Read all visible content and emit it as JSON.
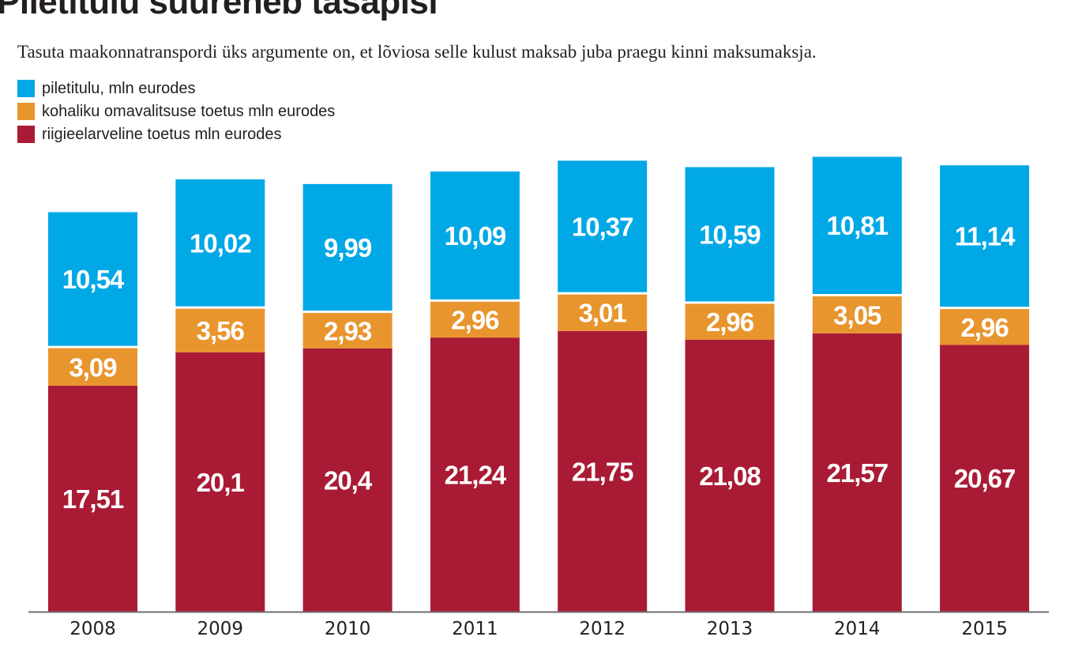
{
  "chart_data": {
    "type": "bar",
    "stacked": true,
    "title": "Piletitulu suureneb tasapisi",
    "subtitle": "Tasuta maakonnatranspordi üks argumente on, et lõviosa selle kulust maksab juba praegu kinni maksumaksja.",
    "categories": [
      "2008",
      "2009",
      "2010",
      "2011",
      "2012",
      "2013",
      "2014",
      "2015"
    ],
    "series": [
      {
        "name": "riigieelarveline toetus mln eurodes",
        "color": "#a91b35",
        "values": [
          17.51,
          20.1,
          20.4,
          21.24,
          21.75,
          21.08,
          21.57,
          20.67
        ],
        "labels": [
          "17,51",
          "20,1",
          "20,4",
          "21,24",
          "21,75",
          "21,08",
          "21,57",
          "20,67"
        ]
      },
      {
        "name": "kohaliku omavalitsuse toetus mln eurodes",
        "color": "#e8952e",
        "values": [
          3.09,
          3.56,
          2.93,
          2.96,
          3.01,
          2.96,
          3.05,
          2.96
        ],
        "labels": [
          "3,09",
          "3,56",
          "2,93",
          "2,96",
          "3,01",
          "2,96",
          "3,05",
          "2,96"
        ]
      },
      {
        "name": "piletitulu, mln eurodes",
        "color": "#00a8e6",
        "values": [
          10.54,
          10.02,
          9.99,
          10.09,
          10.37,
          10.59,
          10.81,
          11.14
        ],
        "labels": [
          "10,54",
          "10,02",
          "9,99",
          "10,09",
          "10,37",
          "10,59",
          "10,81",
          "11,14"
        ]
      }
    ],
    "legend_order": [
      2,
      1,
      0
    ],
    "legend_position": "top-left",
    "grid": false,
    "ylim": [
      0,
      36
    ]
  }
}
